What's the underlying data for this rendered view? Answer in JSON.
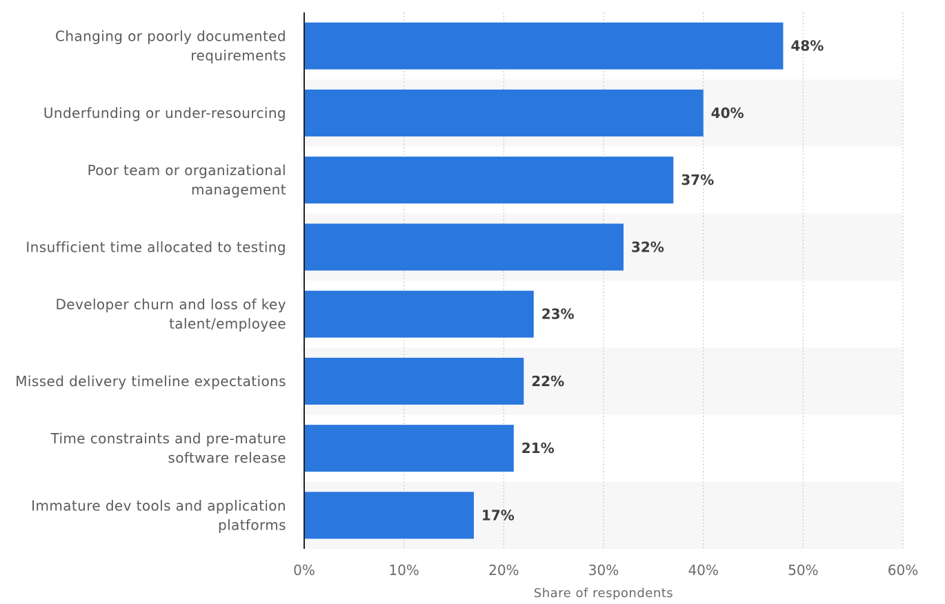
{
  "chart_data": {
    "type": "bar",
    "orientation": "horizontal",
    "categories": [
      [
        "Changing or poorly documented",
        "requirements"
      ],
      [
        "Underfunding or under-resourcing"
      ],
      [
        "Poor team or organizational",
        "management"
      ],
      [
        "Insufficient time allocated to testing"
      ],
      [
        "Developer churn and loss of key",
        "talent/employee"
      ],
      [
        "Missed delivery timeline expectations"
      ],
      [
        "Time constraints and pre-mature",
        "software release"
      ],
      [
        "Immature dev tools and application",
        "platforms"
      ]
    ],
    "values": [
      48,
      40,
      37,
      32,
      23,
      22,
      21,
      17
    ],
    "value_labels": [
      "48%",
      "40%",
      "37%",
      "32%",
      "23%",
      "22%",
      "21%",
      "17%"
    ],
    "xlim": [
      0,
      60
    ],
    "x_ticks": [
      0,
      10,
      20,
      30,
      40,
      50,
      60
    ],
    "x_tick_labels": [
      "0%",
      "10%",
      "20%",
      "30%",
      "40%",
      "50%",
      "60%"
    ],
    "xlabel": "Share of respondents",
    "ylabel": "",
    "grid": true,
    "colors": {
      "bar": "#2a77dd",
      "band": "#f7f7f7",
      "grid": "#c8c8c8",
      "axis": "#222222"
    }
  }
}
